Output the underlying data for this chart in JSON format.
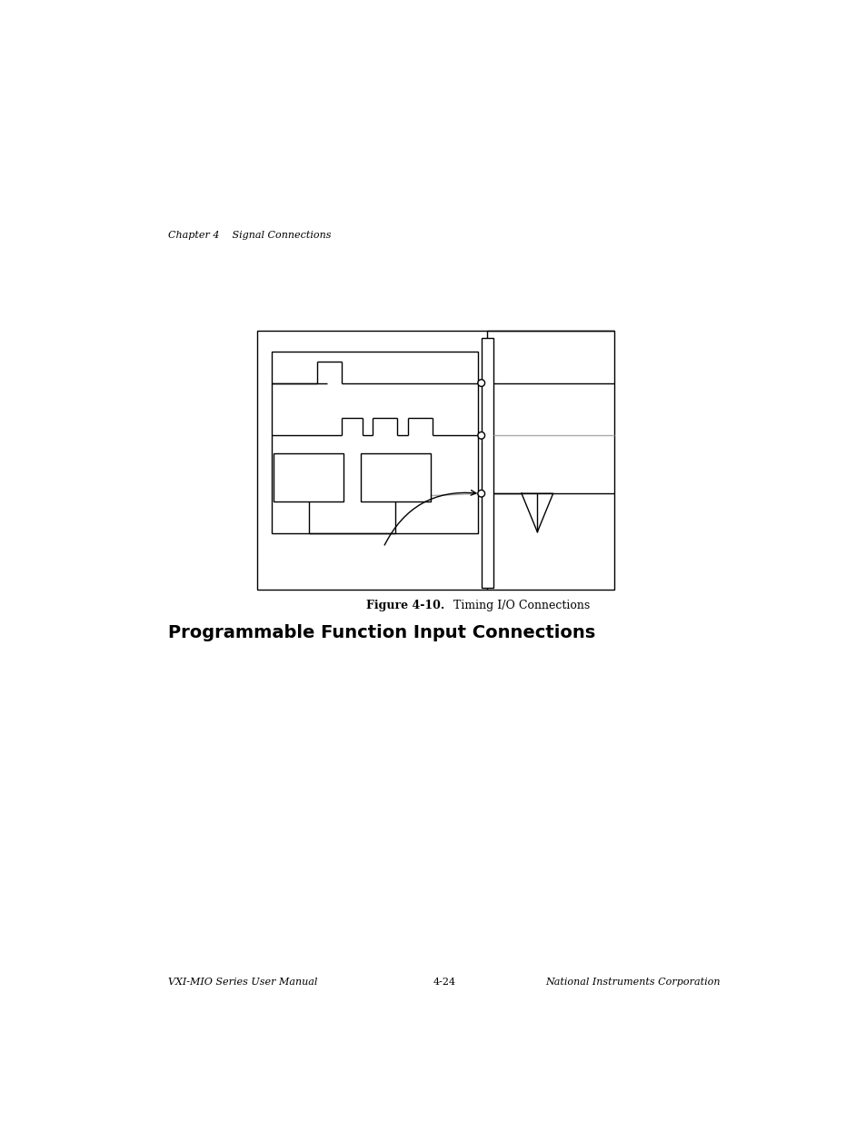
{
  "page_bg": "#ffffff",
  "header_text": "Chapter 4    Signal Connections",
  "header_fontsize": 8,
  "header_style": "italic",
  "section_title": "Programmable Function Input Connections",
  "section_title_fontsize": 14,
  "section_title_weight": "bold",
  "figure_caption_bold": "Figure 4-10.",
  "figure_caption_normal": "  Timing I/O Connections",
  "figure_caption_fontsize": 9,
  "footer_left": "VXI-MIO Series User Manual",
  "footer_center": "4-24",
  "footer_right": "National Instruments Corporation",
  "footer_fontsize": 8,
  "footer_style": "italic",
  "line_color": "#000000",
  "line_width": 1.0,
  "gray_line_color": "#aaaaaa"
}
